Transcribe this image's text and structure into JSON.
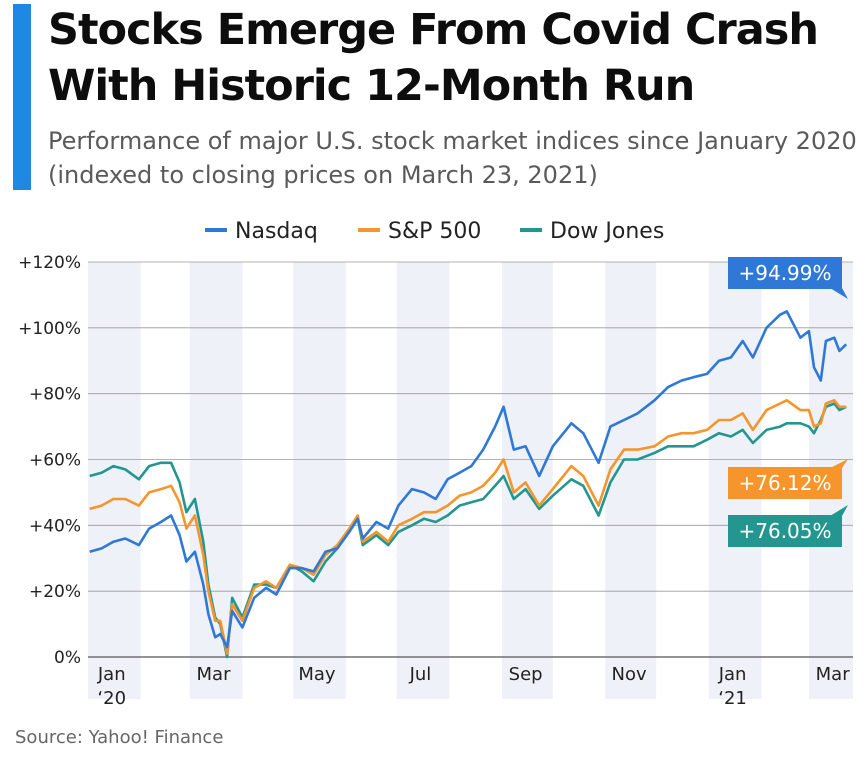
{
  "header": {
    "title": "Stocks Emerge From Covid Crash With Historic 12-Month Run",
    "subtitle": "Performance of major U.S. stock market indices since January 2020 (indexed to closing prices on March 23, 2021)"
  },
  "footer": {
    "source": "Source: Yahoo! Finance"
  },
  "colors": {
    "accent": "#1e88e5",
    "nasdaq": "#2f78d6",
    "sp500": "#f5952b",
    "dow": "#23968f"
  },
  "chart_data": {
    "type": "line",
    "title": "Stocks Emerge From Covid Crash With Historic 12-Month Run",
    "subtitle": "Performance of major U.S. stock market indices since January 2020 (indexed to closing prices on March 23, 2021)",
    "xlabel": "",
    "ylabel": "",
    "x_range": [
      "2020-01-01",
      "2021-03-27"
    ],
    "ylim": [
      0,
      120
    ],
    "y_ticks": [
      0,
      20,
      40,
      60,
      80,
      100,
      120
    ],
    "y_tick_labels": [
      "0%",
      "+20%",
      "+40%",
      "+60%",
      "+80%",
      "+100%",
      "+120%"
    ],
    "x_ticks": [
      {
        "date": "2020-01-15",
        "label": "Jan",
        "sublabel": "‘20"
      },
      {
        "date": "2020-03-15",
        "label": "Mar",
        "sublabel": ""
      },
      {
        "date": "2020-05-15",
        "label": "May",
        "sublabel": ""
      },
      {
        "date": "2020-07-15",
        "label": "Jul",
        "sublabel": ""
      },
      {
        "date": "2020-09-15",
        "label": "Sep",
        "sublabel": ""
      },
      {
        "date": "2020-11-15",
        "label": "Nov",
        "sublabel": ""
      },
      {
        "date": "2021-01-15",
        "label": "Jan",
        "sublabel": "‘21"
      },
      {
        "date": "2021-03-15",
        "label": "Mar",
        "sublabel": ""
      }
    ],
    "shaded_months": [
      [
        "2020-01-01",
        "2020-02-01"
      ],
      [
        "2020-03-01",
        "2020-04-01"
      ],
      [
        "2020-05-01",
        "2020-06-01"
      ],
      [
        "2020-07-01",
        "2020-08-01"
      ],
      [
        "2020-09-01",
        "2020-10-01"
      ],
      [
        "2020-11-01",
        "2020-12-01"
      ],
      [
        "2021-01-01",
        "2021-02-01"
      ],
      [
        "2021-03-01",
        "2021-03-27"
      ]
    ],
    "grid": true,
    "legend_position": "top-center",
    "series": [
      {
        "name": "Nasdaq",
        "color": "#2f78d6",
        "end_label": "+94.99%",
        "points": [
          [
            "2020-01-02",
            32
          ],
          [
            "2020-01-09",
            33
          ],
          [
            "2020-01-16",
            35
          ],
          [
            "2020-01-23",
            36
          ],
          [
            "2020-01-31",
            34
          ],
          [
            "2020-02-06",
            39
          ],
          [
            "2020-02-13",
            41
          ],
          [
            "2020-02-19",
            43
          ],
          [
            "2020-02-24",
            37
          ],
          [
            "2020-02-28",
            29
          ],
          [
            "2020-03-04",
            32
          ],
          [
            "2020-03-09",
            22
          ],
          [
            "2020-03-12",
            13
          ],
          [
            "2020-03-16",
            6
          ],
          [
            "2020-03-19",
            7
          ],
          [
            "2020-03-23",
            3
          ],
          [
            "2020-03-26",
            14
          ],
          [
            "2020-04-01",
            9
          ],
          [
            "2020-04-08",
            18
          ],
          [
            "2020-04-15",
            21
          ],
          [
            "2020-04-21",
            19
          ],
          [
            "2020-04-29",
            27
          ],
          [
            "2020-05-06",
            27
          ],
          [
            "2020-05-13",
            26
          ],
          [
            "2020-05-20",
            32
          ],
          [
            "2020-05-27",
            33
          ],
          [
            "2020-06-03",
            38
          ],
          [
            "2020-06-08",
            42
          ],
          [
            "2020-06-11",
            36
          ],
          [
            "2020-06-19",
            41
          ],
          [
            "2020-06-26",
            39
          ],
          [
            "2020-07-02",
            46
          ],
          [
            "2020-07-10",
            51
          ],
          [
            "2020-07-17",
            50
          ],
          [
            "2020-07-24",
            48
          ],
          [
            "2020-07-31",
            54
          ],
          [
            "2020-08-07",
            56
          ],
          [
            "2020-08-14",
            58
          ],
          [
            "2020-08-21",
            63
          ],
          [
            "2020-08-28",
            70
          ],
          [
            "2020-09-02",
            76
          ],
          [
            "2020-09-08",
            63
          ],
          [
            "2020-09-15",
            64
          ],
          [
            "2020-09-23",
            55
          ],
          [
            "2020-10-01",
            64
          ],
          [
            "2020-10-12",
            71
          ],
          [
            "2020-10-19",
            68
          ],
          [
            "2020-10-28",
            59
          ],
          [
            "2020-11-04",
            70
          ],
          [
            "2020-11-12",
            72
          ],
          [
            "2020-11-20",
            74
          ],
          [
            "2020-11-30",
            78
          ],
          [
            "2020-12-08",
            82
          ],
          [
            "2020-12-16",
            84
          ],
          [
            "2020-12-23",
            85
          ],
          [
            "2020-12-31",
            86
          ],
          [
            "2021-01-07",
            90
          ],
          [
            "2021-01-14",
            91
          ],
          [
            "2021-01-21",
            96
          ],
          [
            "2021-01-27",
            91
          ],
          [
            "2021-02-04",
            100
          ],
          [
            "2021-02-12",
            104
          ],
          [
            "2021-02-16",
            105
          ],
          [
            "2021-02-24",
            97
          ],
          [
            "2021-03-01",
            99
          ],
          [
            "2021-03-04",
            88
          ],
          [
            "2021-03-08",
            84
          ],
          [
            "2021-03-11",
            96
          ],
          [
            "2021-03-16",
            97
          ],
          [
            "2021-03-19",
            93
          ],
          [
            "2021-03-23",
            95
          ]
        ]
      },
      {
        "name": "S&P 500",
        "color": "#f5952b",
        "end_label": "+76.12%",
        "points": [
          [
            "2020-01-02",
            45
          ],
          [
            "2020-01-09",
            46
          ],
          [
            "2020-01-16",
            48
          ],
          [
            "2020-01-23",
            48
          ],
          [
            "2020-01-31",
            46
          ],
          [
            "2020-02-06",
            50
          ],
          [
            "2020-02-13",
            51
          ],
          [
            "2020-02-19",
            52
          ],
          [
            "2020-02-24",
            47
          ],
          [
            "2020-02-28",
            39
          ],
          [
            "2020-03-04",
            43
          ],
          [
            "2020-03-09",
            31
          ],
          [
            "2020-03-12",
            20
          ],
          [
            "2020-03-16",
            11
          ],
          [
            "2020-03-19",
            11
          ],
          [
            "2020-03-23",
            1
          ],
          [
            "2020-03-26",
            16
          ],
          [
            "2020-04-01",
            11
          ],
          [
            "2020-04-08",
            21
          ],
          [
            "2020-04-15",
            23
          ],
          [
            "2020-04-21",
            21
          ],
          [
            "2020-04-29",
            28
          ],
          [
            "2020-05-06",
            27
          ],
          [
            "2020-05-13",
            25
          ],
          [
            "2020-05-20",
            31
          ],
          [
            "2020-05-27",
            34
          ],
          [
            "2020-06-03",
            39
          ],
          [
            "2020-06-08",
            43
          ],
          [
            "2020-06-11",
            35
          ],
          [
            "2020-06-19",
            38
          ],
          [
            "2020-06-26",
            35
          ],
          [
            "2020-07-02",
            40
          ],
          [
            "2020-07-10",
            42
          ],
          [
            "2020-07-17",
            44
          ],
          [
            "2020-07-24",
            44
          ],
          [
            "2020-07-31",
            46
          ],
          [
            "2020-08-07",
            49
          ],
          [
            "2020-08-14",
            50
          ],
          [
            "2020-08-21",
            52
          ],
          [
            "2020-08-28",
            56
          ],
          [
            "2020-09-02",
            60
          ],
          [
            "2020-09-08",
            50
          ],
          [
            "2020-09-15",
            53
          ],
          [
            "2020-09-23",
            46
          ],
          [
            "2020-10-01",
            51
          ],
          [
            "2020-10-12",
            58
          ],
          [
            "2020-10-19",
            55
          ],
          [
            "2020-10-28",
            46
          ],
          [
            "2020-11-04",
            57
          ],
          [
            "2020-11-12",
            63
          ],
          [
            "2020-11-20",
            63
          ],
          [
            "2020-11-30",
            64
          ],
          [
            "2020-12-08",
            67
          ],
          [
            "2020-12-16",
            68
          ],
          [
            "2020-12-23",
            68
          ],
          [
            "2020-12-31",
            69
          ],
          [
            "2021-01-07",
            72
          ],
          [
            "2021-01-14",
            72
          ],
          [
            "2021-01-21",
            74
          ],
          [
            "2021-01-27",
            69
          ],
          [
            "2021-02-04",
            75
          ],
          [
            "2021-02-12",
            77
          ],
          [
            "2021-02-16",
            78
          ],
          [
            "2021-02-24",
            75
          ],
          [
            "2021-03-01",
            75
          ],
          [
            "2021-03-04",
            70
          ],
          [
            "2021-03-08",
            71
          ],
          [
            "2021-03-11",
            77
          ],
          [
            "2021-03-16",
            78
          ],
          [
            "2021-03-19",
            76
          ],
          [
            "2021-03-23",
            76
          ]
        ]
      },
      {
        "name": "Dow Jones",
        "color": "#23968f",
        "end_label": "+76.05%",
        "points": [
          [
            "2020-01-02",
            55
          ],
          [
            "2020-01-09",
            56
          ],
          [
            "2020-01-16",
            58
          ],
          [
            "2020-01-23",
            57
          ],
          [
            "2020-01-31",
            54
          ],
          [
            "2020-02-06",
            58
          ],
          [
            "2020-02-13",
            59
          ],
          [
            "2020-02-19",
            59
          ],
          [
            "2020-02-24",
            53
          ],
          [
            "2020-02-28",
            44
          ],
          [
            "2020-03-04",
            48
          ],
          [
            "2020-03-09",
            35
          ],
          [
            "2020-03-12",
            22
          ],
          [
            "2020-03-16",
            12
          ],
          [
            "2020-03-19",
            10
          ],
          [
            "2020-03-23",
            0
          ],
          [
            "2020-03-26",
            18
          ],
          [
            "2020-04-01",
            12
          ],
          [
            "2020-04-08",
            22
          ],
          [
            "2020-04-15",
            22
          ],
          [
            "2020-04-21",
            21
          ],
          [
            "2020-04-29",
            28
          ],
          [
            "2020-05-06",
            26
          ],
          [
            "2020-05-13",
            23
          ],
          [
            "2020-05-20",
            29
          ],
          [
            "2020-05-27",
            33
          ],
          [
            "2020-06-03",
            38
          ],
          [
            "2020-06-08",
            42
          ],
          [
            "2020-06-11",
            34
          ],
          [
            "2020-06-19",
            37
          ],
          [
            "2020-06-26",
            34
          ],
          [
            "2020-07-02",
            38
          ],
          [
            "2020-07-10",
            40
          ],
          [
            "2020-07-17",
            42
          ],
          [
            "2020-07-24",
            41
          ],
          [
            "2020-07-31",
            43
          ],
          [
            "2020-08-07",
            46
          ],
          [
            "2020-08-14",
            47
          ],
          [
            "2020-08-21",
            48
          ],
          [
            "2020-08-28",
            52
          ],
          [
            "2020-09-02",
            55
          ],
          [
            "2020-09-08",
            48
          ],
          [
            "2020-09-15",
            51
          ],
          [
            "2020-09-23",
            45
          ],
          [
            "2020-10-01",
            49
          ],
          [
            "2020-10-12",
            54
          ],
          [
            "2020-10-19",
            52
          ],
          [
            "2020-10-28",
            43
          ],
          [
            "2020-11-04",
            53
          ],
          [
            "2020-11-12",
            60
          ],
          [
            "2020-11-20",
            60
          ],
          [
            "2020-11-30",
            62
          ],
          [
            "2020-12-08",
            64
          ],
          [
            "2020-12-16",
            64
          ],
          [
            "2020-12-23",
            64
          ],
          [
            "2020-12-31",
            66
          ],
          [
            "2021-01-07",
            68
          ],
          [
            "2021-01-14",
            67
          ],
          [
            "2021-01-21",
            69
          ],
          [
            "2021-01-27",
            65
          ],
          [
            "2021-02-04",
            69
          ],
          [
            "2021-02-12",
            70
          ],
          [
            "2021-02-16",
            71
          ],
          [
            "2021-02-24",
            71
          ],
          [
            "2021-03-01",
            70
          ],
          [
            "2021-03-04",
            68
          ],
          [
            "2021-03-08",
            72
          ],
          [
            "2021-03-11",
            76
          ],
          [
            "2021-03-16",
            77
          ],
          [
            "2021-03-19",
            75
          ],
          [
            "2021-03-23",
            76
          ]
        ]
      }
    ]
  }
}
